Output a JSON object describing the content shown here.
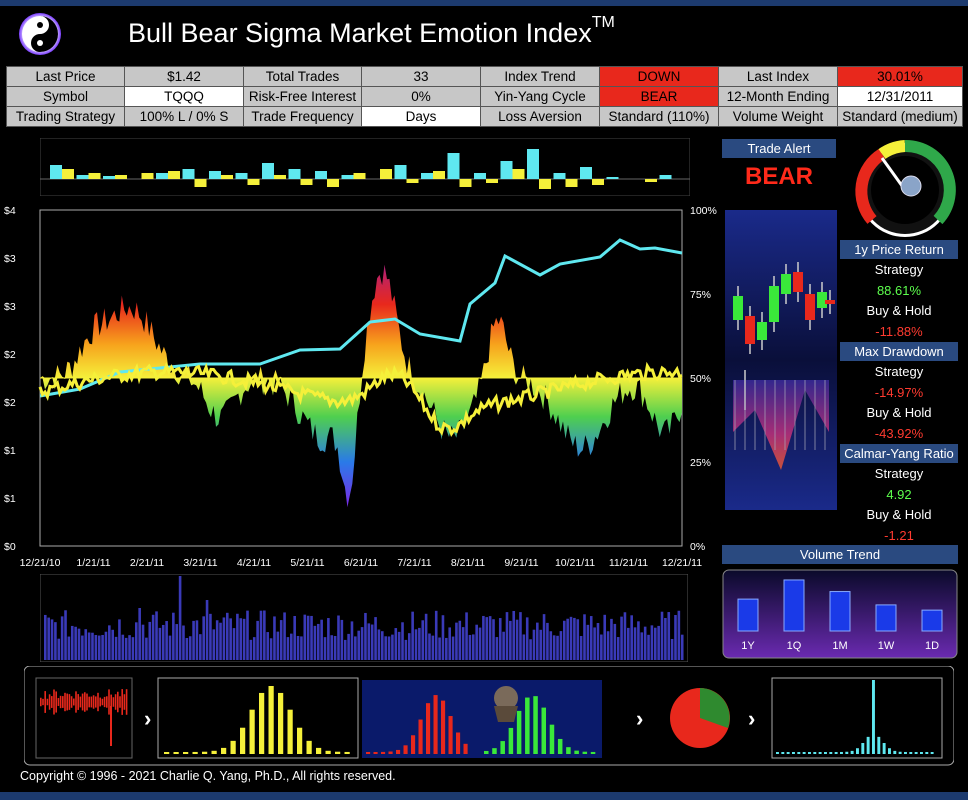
{
  "header": {
    "title": "Bull Bear Sigma Market Emotion Index",
    "tm": "TM"
  },
  "info": {
    "row1": [
      "Last Price",
      "$1.42",
      "Total Trades",
      "33",
      "Index Trend",
      "DOWN",
      "Last Index",
      "30.01%"
    ],
    "row2": [
      "Symbol",
      "TQQQ",
      "Risk-Free Interest",
      "0%",
      "Yin-Yang Cycle",
      "BEAR",
      "12-Month Ending",
      "12/31/2011"
    ],
    "row3": [
      "Trading Strategy",
      "100% L / 0% S",
      "Trade Frequency",
      "Days",
      "Loss Aversion",
      "Standard (110%)",
      "Volume Weight",
      "Standard (medium)"
    ]
  },
  "main_chart": {
    "left_ticks": [
      "$4",
      "$3",
      "$3",
      "$2",
      "$2",
      "$1",
      "$1",
      "$0"
    ],
    "right_ticks": [
      "100%",
      "75%",
      "50%",
      "25%",
      "0%"
    ],
    "x_ticks": [
      "12/21/10",
      "1/21/11",
      "2/21/11",
      "3/21/11",
      "4/21/11",
      "5/21/11",
      "6/21/11",
      "7/21/11",
      "8/21/11",
      "9/21/11",
      "10/21/11",
      "11/21/11",
      "12/21/11"
    ]
  },
  "trade_alert": {
    "header": "Trade Alert",
    "signal": "BEAR"
  },
  "returns": {
    "price_return_label": "1y Price Return",
    "strategy_label": "Strategy",
    "strategy_return": "88.61%",
    "buyhold_label": "Buy & Hold",
    "buyhold_return": "-11.88%",
    "drawdown_label": "Max Drawdown",
    "strategy_drawdown": "-14.97%",
    "buyhold_drawdown": "-43.92%",
    "calmar_label": "Calmar-Yang Ratio",
    "strategy_calmar": "4.92",
    "buyhold_calmar": "-1.21"
  },
  "volume_trend": {
    "header": "Volume Trend",
    "labels": [
      "1Y",
      "1Q",
      "1M",
      "1W",
      "1D"
    ],
    "values": [
      0.55,
      0.88,
      0.68,
      0.45,
      0.36
    ]
  },
  "colors": {
    "accent_blue": "#2a4a80",
    "bear_red": "#e8281c",
    "strategy_line": "#5fe8f0",
    "price_line": "#f5f03a"
  },
  "footer": {
    "copyright": "Copyright © 1996 - 2021 Charlie Q. Yang, Ph.D., All rights reserved."
  }
}
